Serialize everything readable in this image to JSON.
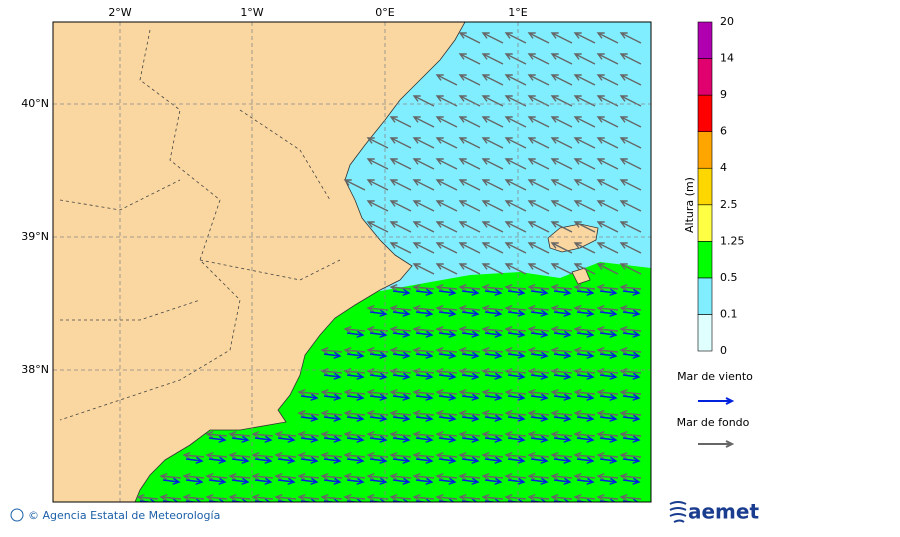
{
  "map": {
    "lon_labels": [
      "2°W",
      "1°W",
      "0°E",
      "1°E"
    ],
    "lat_labels": [
      "40°N",
      "39°N",
      "38°N"
    ],
    "land_color": "#fad7a0",
    "sea_colors": [
      "#80eeff",
      "#00ff00"
    ]
  },
  "colorbar": {
    "title": "Altura (m)",
    "levels": [
      "0",
      "0.1",
      "0.5",
      "1.25",
      "2.5",
      "4",
      "6",
      "9",
      "14",
      "20"
    ],
    "colors": [
      "#e0ffff",
      "#80eeff",
      "#00ff00",
      "#ffff44",
      "#ffd700",
      "#ffa500",
      "#ff0000",
      "#e0006e",
      "#b000b0"
    ]
  },
  "legend": {
    "wind_sea": {
      "label": "Mar de viento",
      "color": "#0022dd"
    },
    "swell": {
      "label": "Mar de fondo",
      "color": "#666666"
    }
  },
  "footer": {
    "credit": "© Agencia Estatal de Meteorología",
    "logo": "aemet"
  }
}
